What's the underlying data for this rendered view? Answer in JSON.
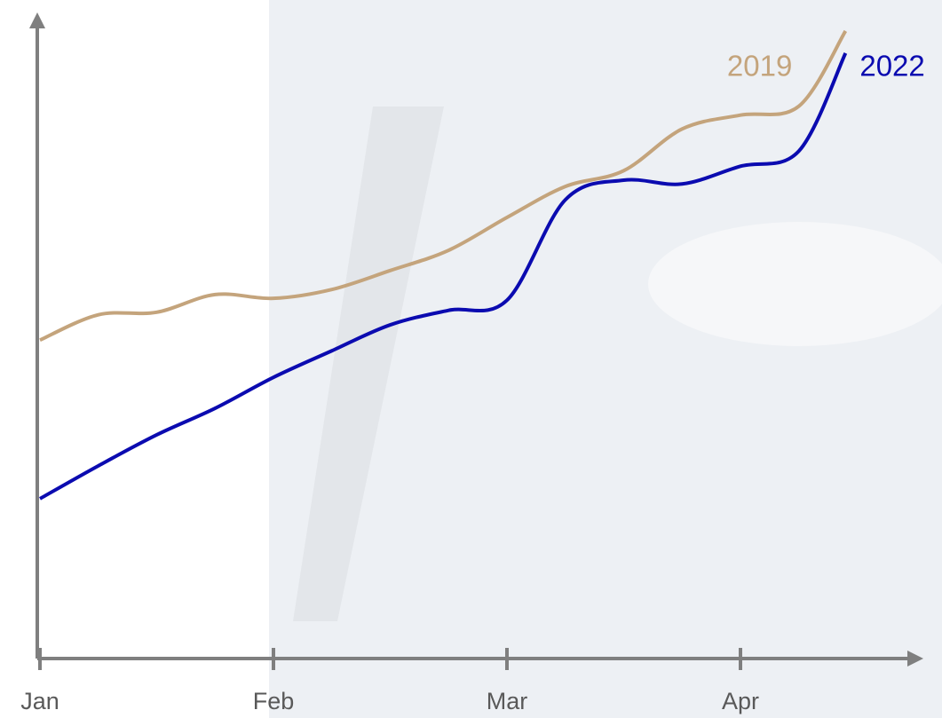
{
  "chart_data": {
    "type": "line",
    "x": [
      0,
      0.25,
      0.5,
      0.75,
      1,
      1.25,
      1.5,
      1.75,
      2,
      2.25,
      2.5,
      2.75,
      3,
      3.25,
      3.45
    ],
    "series": [
      {
        "name": "2019",
        "color": "#c4a47c",
        "values": [
          50.4,
          54.4,
          54.8,
          57.6,
          57.0,
          58.4,
          61.4,
          64.6,
          69.8,
          74.7,
          77.2,
          83.8,
          86.0,
          87.4,
          99.3
        ]
      },
      {
        "name": "2022",
        "color": "#0b0bb0",
        "values": [
          25.3,
          30.5,
          35.4,
          39.6,
          44.5,
          48.7,
          52.8,
          55.1,
          56.7,
          72.6,
          75.7,
          75.1,
          77.9,
          80.3,
          95.8
        ]
      }
    ],
    "xlim": [
      0,
      3.75
    ],
    "xticks": [
      {
        "value": 0,
        "label": "Jan"
      },
      {
        "value": 1,
        "label": "Feb"
      },
      {
        "value": 2,
        "label": "Mar"
      },
      {
        "value": 3,
        "label": "Apr"
      }
    ],
    "ylim": [
      0,
      100
    ]
  }
}
